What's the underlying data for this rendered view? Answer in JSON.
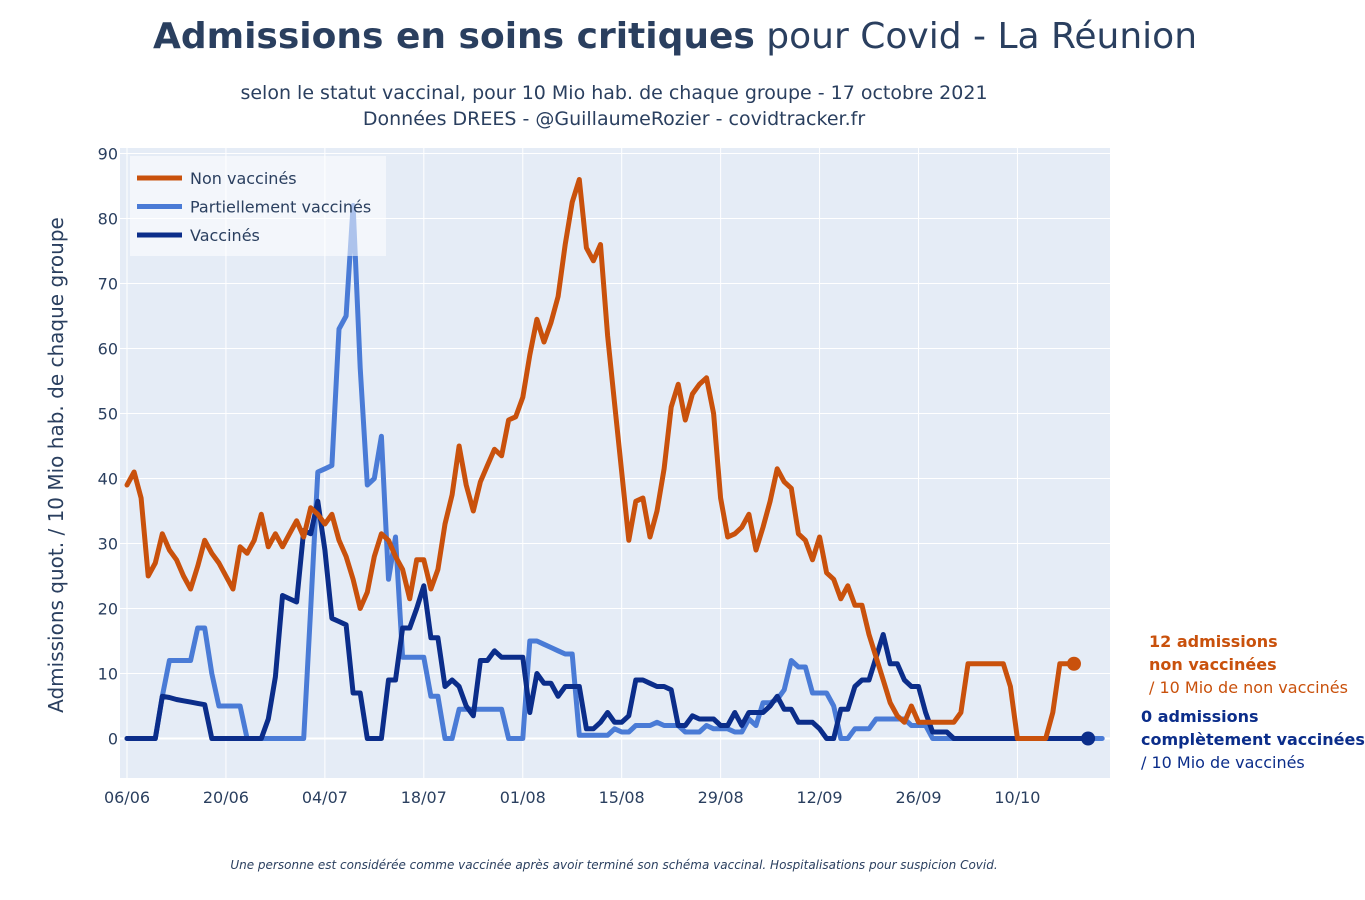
{
  "header": {
    "title_bold": "Admissions en soins critiques",
    "title_rest": " pour Covid - La Réunion",
    "subtitle_line1": "selon le statut vaccinal, pour 10 Mio hab. de chaque groupe - 17 octobre 2021",
    "subtitle_line2": "Données DREES - @GuillaumeRozier - covidtracker.fr"
  },
  "footnote": "Une personne est considérée comme vaccinée après avoir terminé son schéma vaccinal. Hospitalisations pour suspicion Covid.",
  "annotations": {
    "non_vaccines": {
      "line1": "12 admissions",
      "line2": "non vaccinées",
      "line3": "/ 10 Mio de non vaccinés"
    },
    "vaccines": {
      "line1": "0 admissions",
      "line2": "complètement vaccinées",
      "line3": "/ 10 Mio de vaccinés"
    }
  },
  "colors": {
    "non_vaccines": "#c9510c",
    "partiellement": "#4a7bd6",
    "vaccines": "#0b2d8a",
    "plot_bg": "#e5ecf6",
    "grid": "#ffffff"
  },
  "chart_data": {
    "type": "line",
    "ylabel": "Admissions quot. / 10 Mio hab. de chaque groupe",
    "xlabel": "",
    "ylim": [
      -6,
      90
    ],
    "y_ticks": [
      0,
      10,
      20,
      30,
      40,
      50,
      60,
      70,
      80,
      90
    ],
    "x_tick_labels": [
      "06/06",
      "20/06",
      "04/07",
      "18/07",
      "01/08",
      "15/08",
      "29/08",
      "12/09",
      "26/09",
      "10/10"
    ],
    "x_start": "2021-06-06",
    "x_end": "2021-10-17",
    "grid": true,
    "legend_position": "top-left",
    "series": [
      {
        "name": "Non vaccinés",
        "color": "#c9510c",
        "values": [
          39,
          41,
          37,
          25,
          27,
          31.5,
          29,
          27.5,
          25,
          23,
          26.5,
          30.5,
          28.5,
          27,
          25,
          23,
          29.5,
          28.5,
          30.5,
          34.5,
          29.5,
          31.5,
          29.5,
          31.5,
          33.5,
          31,
          35.5,
          34.5,
          33,
          34.5,
          30.5,
          28,
          24.5,
          20,
          22.5,
          28,
          31.5,
          30.5,
          28,
          26,
          21.5,
          27.5,
          27.5,
          23,
          26,
          33,
          37.5,
          45,
          39,
          35,
          39.5,
          42,
          44.5,
          43.5,
          49,
          49.5,
          52.5,
          59,
          64.5,
          61,
          64,
          68,
          76,
          82.5,
          86,
          75.5,
          73.5,
          76,
          62,
          51.5,
          41,
          30.5,
          36.5,
          37,
          31,
          35,
          41.5,
          51,
          54.5,
          49,
          53,
          54.5,
          55.5,
          50,
          37,
          31,
          31.5,
          32.5,
          34.5,
          29,
          32.5,
          36.5,
          41.5,
          39.5,
          38.5,
          31.5,
          30.5,
          27.5,
          31,
          25.5,
          24.5,
          21.5,
          23.5,
          20.5,
          20.5,
          16,
          12.5,
          9,
          5.5,
          3.5,
          2.5,
          5,
          2.5,
          2.5,
          2.5,
          2.5,
          2.5,
          2.5,
          4,
          11.5,
          11.5,
          11.5,
          11.5,
          11.5,
          11.5,
          8,
          0,
          0,
          0,
          0,
          0,
          4,
          11.5,
          11.5,
          11.5
        ]
      },
      {
        "name": "Partiellement vaccinés",
        "color": "#4a7bd6",
        "values": [
          0,
          0,
          0,
          0,
          0,
          6.5,
          12,
          12,
          12,
          12,
          17,
          17,
          10,
          5,
          5,
          5,
          5,
          0,
          0,
          0,
          0,
          0,
          0,
          0,
          0,
          0,
          20,
          41,
          41.5,
          42,
          63,
          65,
          82,
          57,
          39,
          40,
          46.5,
          24.5,
          31,
          12.5,
          12.5,
          12.5,
          12.5,
          6.5,
          6.5,
          0,
          0,
          4.5,
          4.5,
          4.5,
          4.5,
          4.5,
          4.5,
          4.5,
          0,
          0,
          0,
          15,
          15,
          14.5,
          14,
          13.5,
          13,
          13,
          0.5,
          0.5,
          0.5,
          0.5,
          0.5,
          1.5,
          1,
          1,
          2,
          2,
          2,
          2.5,
          2,
          2,
          2,
          1,
          1,
          1,
          2,
          1.5,
          1.5,
          1.5,
          1,
          1,
          3,
          2,
          5.5,
          5.5,
          6,
          7.5,
          12,
          11,
          11,
          7,
          7,
          7,
          5,
          0,
          0,
          1.5,
          1.5,
          1.5,
          3,
          3,
          3,
          3,
          3,
          2,
          2,
          2,
          0,
          0,
          0,
          0,
          0,
          0,
          0,
          0,
          0,
          0,
          0,
          0,
          0,
          0,
          0,
          0,
          0,
          0,
          0,
          0,
          0,
          0,
          0,
          0,
          0
        ]
      },
      {
        "name": "Vaccinés",
        "color": "#0b2d8a",
        "values": [
          0,
          0,
          0,
          0,
          0,
          6.5,
          6.3,
          6,
          5.8,
          5.6,
          5.4,
          5.2,
          0,
          0,
          0,
          0,
          0,
          0,
          0,
          0,
          3,
          9.5,
          22,
          21.5,
          21,
          32,
          31.5,
          36.5,
          29,
          18.5,
          18,
          17.5,
          7,
          7,
          0,
          0,
          0,
          9,
          9,
          17,
          17,
          20,
          23.5,
          15.5,
          15.5,
          8,
          9,
          8,
          5,
          3.5,
          12,
          12,
          13.5,
          12.5,
          12.5,
          12.5,
          12.5,
          4,
          10,
          8.5,
          8.5,
          6.5,
          8,
          8,
          8,
          1.5,
          1.5,
          2.5,
          4,
          2.5,
          2.5,
          3.5,
          9,
          9,
          8.5,
          8,
          8,
          7.5,
          2,
          2,
          3.5,
          3,
          3,
          3,
          2,
          2,
          4,
          2,
          4,
          4,
          4,
          5,
          6.5,
          4.5,
          4.5,
          2.5,
          2.5,
          2.5,
          1.5,
          0,
          0,
          4.5,
          4.5,
          8,
          9,
          9,
          12.5,
          16,
          11.5,
          11.5,
          9,
          8,
          8,
          4,
          1,
          1,
          1,
          0,
          0,
          0,
          0,
          0,
          0,
          0,
          0,
          0,
          0,
          0,
          0,
          0,
          0,
          0,
          0,
          0,
          0,
          0,
          0
        ]
      }
    ]
  }
}
